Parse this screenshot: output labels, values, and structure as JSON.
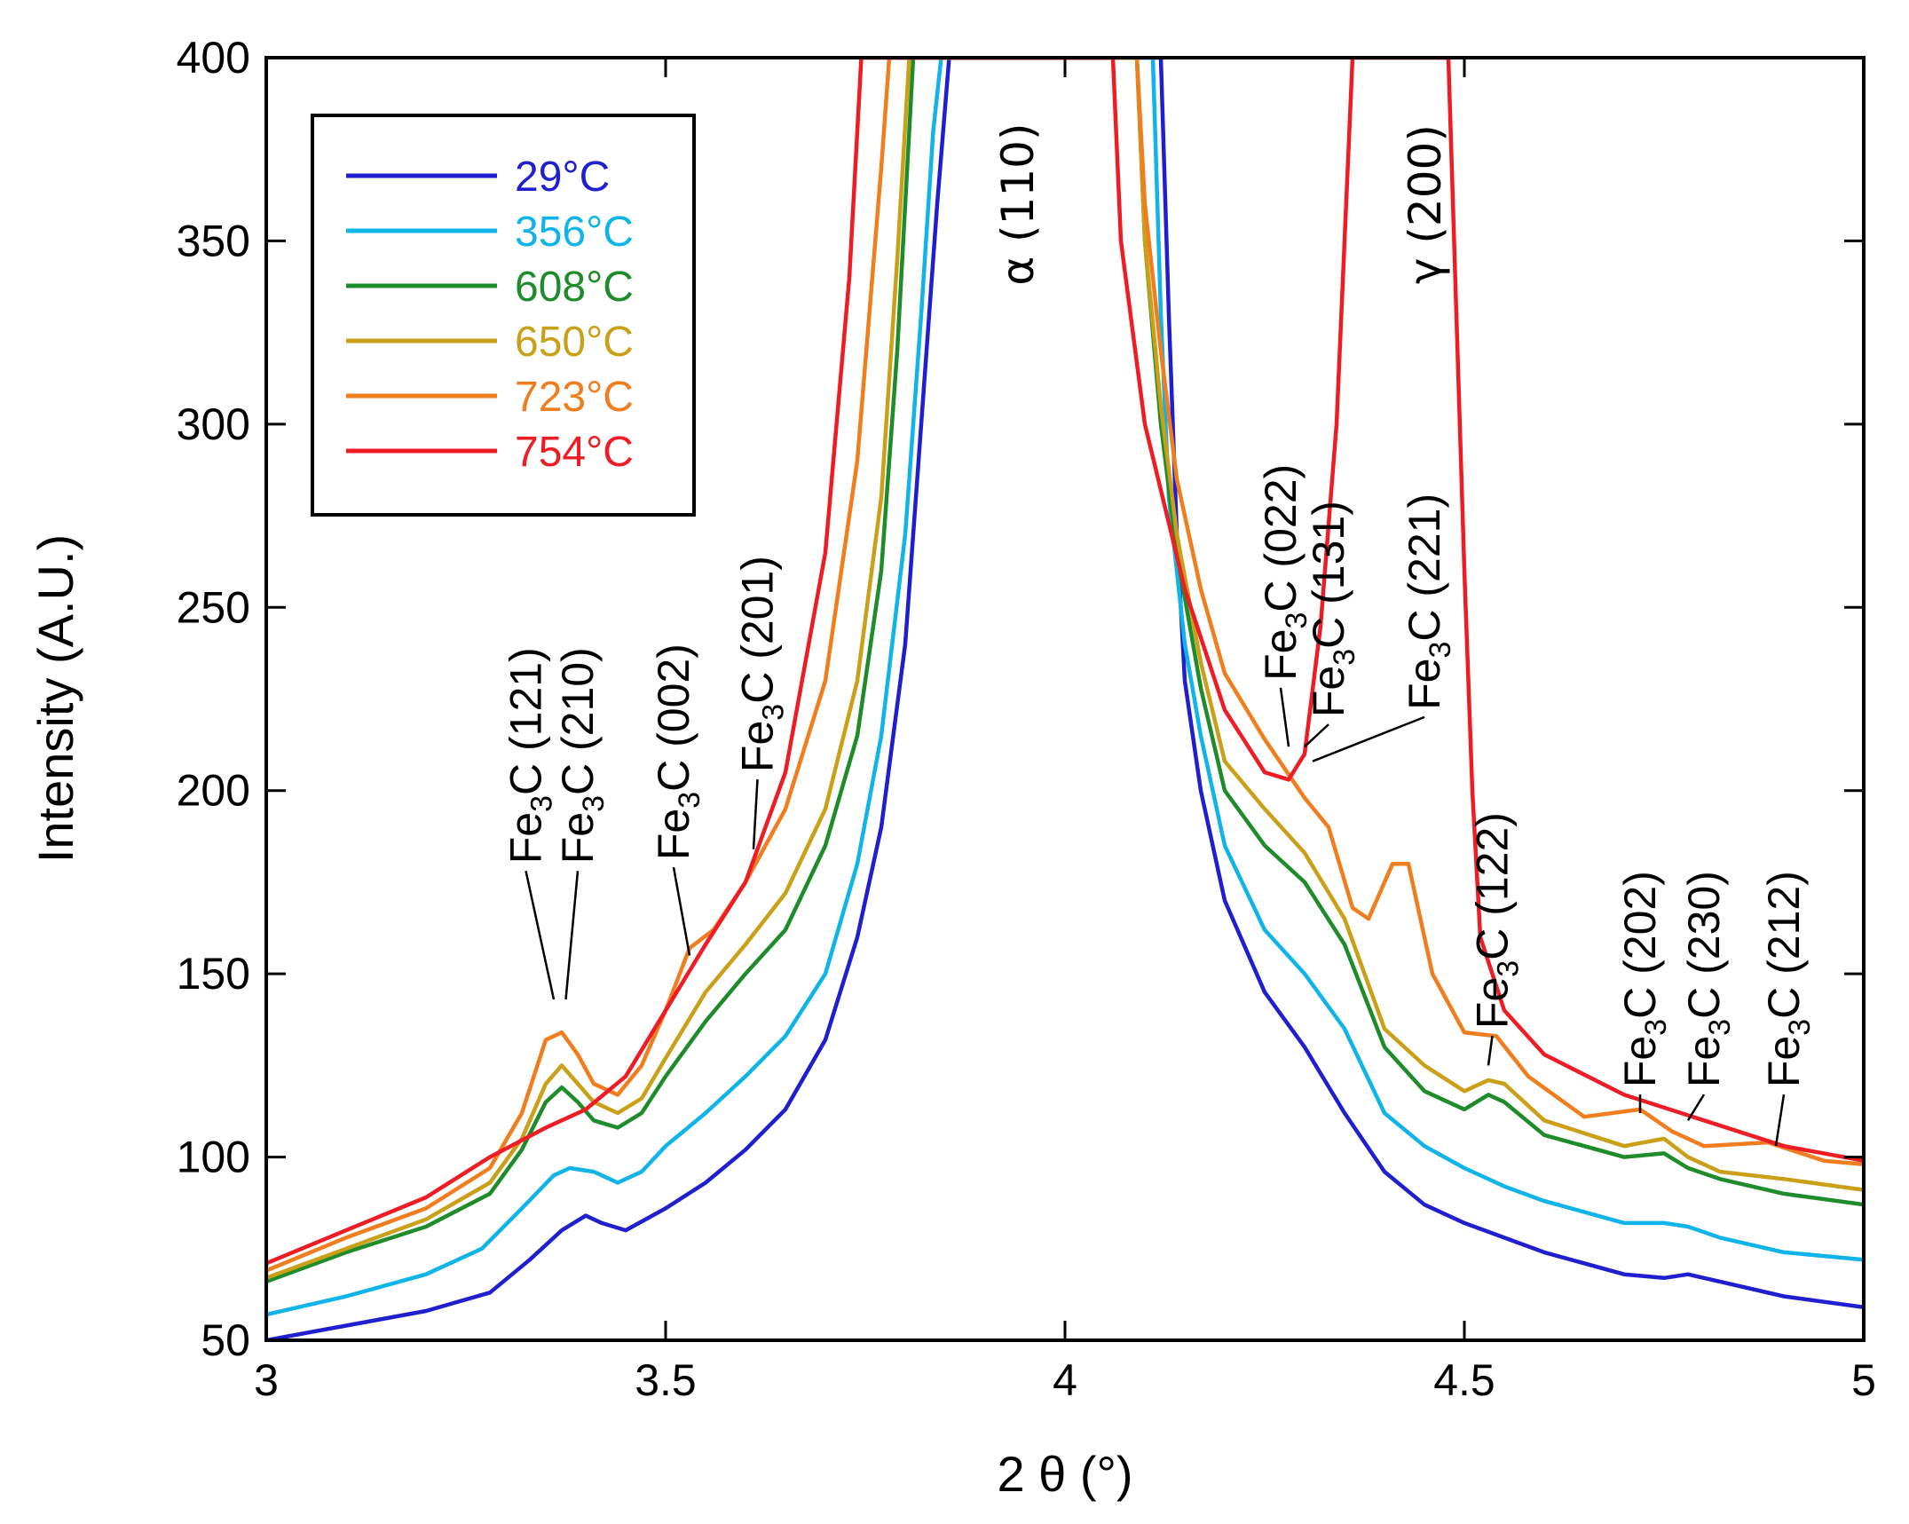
{
  "chart_data": {
    "type": "line",
    "title": "",
    "xlabel": "2 θ (°)",
    "ylabel": "Intensity (A.U.)",
    "xlim": [
      3,
      5
    ],
    "ylim": [
      50,
      400
    ],
    "xticks": [
      3,
      3.5,
      4,
      4.5,
      5
    ],
    "xtick_labels": [
      "3",
      "3.5",
      "4",
      "4.5",
      "5"
    ],
    "yticks": [
      50,
      100,
      150,
      200,
      250,
      300,
      350,
      400
    ],
    "ytick_labels": [
      "50",
      "100",
      "150",
      "200",
      "250",
      "300",
      "350",
      "400"
    ],
    "grid": false,
    "legend_position": "top-left",
    "series": [
      {
        "name": "29°C",
        "color": "#1f1fd0",
        "points": [
          [
            3.0,
            50
          ],
          [
            3.1,
            54
          ],
          [
            3.2,
            58
          ],
          [
            3.28,
            63
          ],
          [
            3.33,
            72
          ],
          [
            3.37,
            80
          ],
          [
            3.4,
            84
          ],
          [
            3.42,
            82
          ],
          [
            3.45,
            80
          ],
          [
            3.5,
            86
          ],
          [
            3.55,
            93
          ],
          [
            3.6,
            102
          ],
          [
            3.65,
            113
          ],
          [
            3.7,
            132
          ],
          [
            3.74,
            160
          ],
          [
            3.77,
            190
          ],
          [
            3.8,
            240
          ],
          [
            3.82,
            300
          ],
          [
            3.84,
            360
          ],
          [
            3.855,
            400
          ],
          [
            4.12,
            400
          ],
          [
            4.13,
            330
          ],
          [
            4.14,
            270
          ],
          [
            4.15,
            230
          ],
          [
            4.17,
            200
          ],
          [
            4.2,
            170
          ],
          [
            4.25,
            145
          ],
          [
            4.3,
            130
          ],
          [
            4.35,
            112
          ],
          [
            4.4,
            96
          ],
          [
            4.45,
            87
          ],
          [
            4.5,
            82
          ],
          [
            4.55,
            78
          ],
          [
            4.6,
            74
          ],
          [
            4.7,
            68
          ],
          [
            4.75,
            67
          ],
          [
            4.78,
            68
          ],
          [
            4.82,
            66
          ],
          [
            4.9,
            62
          ],
          [
            5.0,
            59
          ]
        ]
      },
      {
        "name": "356°C",
        "color": "#10b4e8",
        "points": [
          [
            3.0,
            57
          ],
          [
            3.1,
            62
          ],
          [
            3.2,
            68
          ],
          [
            3.27,
            75
          ],
          [
            3.32,
            86
          ],
          [
            3.36,
            95
          ],
          [
            3.38,
            97
          ],
          [
            3.41,
            96
          ],
          [
            3.44,
            93
          ],
          [
            3.47,
            96
          ],
          [
            3.5,
            103
          ],
          [
            3.55,
            112
          ],
          [
            3.6,
            122
          ],
          [
            3.65,
            133
          ],
          [
            3.7,
            150
          ],
          [
            3.74,
            180
          ],
          [
            3.77,
            215
          ],
          [
            3.8,
            270
          ],
          [
            3.82,
            330
          ],
          [
            3.835,
            380
          ],
          [
            3.845,
            400
          ],
          [
            4.11,
            400
          ],
          [
            4.12,
            330
          ],
          [
            4.13,
            280
          ],
          [
            4.15,
            240
          ],
          [
            4.17,
            215
          ],
          [
            4.2,
            185
          ],
          [
            4.25,
            162
          ],
          [
            4.3,
            150
          ],
          [
            4.35,
            135
          ],
          [
            4.4,
            112
          ],
          [
            4.45,
            103
          ],
          [
            4.5,
            97
          ],
          [
            4.55,
            92
          ],
          [
            4.6,
            88
          ],
          [
            4.7,
            82
          ],
          [
            4.75,
            82
          ],
          [
            4.78,
            81
          ],
          [
            4.82,
            78
          ],
          [
            4.9,
            74
          ],
          [
            5.0,
            72
          ]
        ]
      },
      {
        "name": "608°C",
        "color": "#1e8c2a",
        "points": [
          [
            3.0,
            66
          ],
          [
            3.1,
            74
          ],
          [
            3.2,
            81
          ],
          [
            3.28,
            90
          ],
          [
            3.32,
            102
          ],
          [
            3.35,
            115
          ],
          [
            3.37,
            119
          ],
          [
            3.39,
            115
          ],
          [
            3.41,
            110
          ],
          [
            3.44,
            108
          ],
          [
            3.47,
            112
          ],
          [
            3.5,
            122
          ],
          [
            3.55,
            137
          ],
          [
            3.6,
            150
          ],
          [
            3.65,
            162
          ],
          [
            3.7,
            185
          ],
          [
            3.74,
            215
          ],
          [
            3.77,
            260
          ],
          [
            3.79,
            320
          ],
          [
            3.81,
            400
          ],
          [
            4.09,
            400
          ],
          [
            4.1,
            350
          ],
          [
            4.12,
            300
          ],
          [
            4.14,
            265
          ],
          [
            4.17,
            228
          ],
          [
            4.2,
            200
          ],
          [
            4.25,
            185
          ],
          [
            4.3,
            175
          ],
          [
            4.35,
            158
          ],
          [
            4.4,
            130
          ],
          [
            4.45,
            118
          ],
          [
            4.5,
            113
          ],
          [
            4.53,
            117
          ],
          [
            4.55,
            115
          ],
          [
            4.6,
            106
          ],
          [
            4.7,
            100
          ],
          [
            4.75,
            101
          ],
          [
            4.78,
            97
          ],
          [
            4.82,
            94
          ],
          [
            4.9,
            90
          ],
          [
            5.0,
            87
          ]
        ]
      },
      {
        "name": "650°C",
        "color": "#c9a018",
        "points": [
          [
            3.0,
            67
          ],
          [
            3.1,
            75
          ],
          [
            3.2,
            83
          ],
          [
            3.28,
            93
          ],
          [
            3.32,
            105
          ],
          [
            3.35,
            120
          ],
          [
            3.37,
            125
          ],
          [
            3.39,
            120
          ],
          [
            3.41,
            115
          ],
          [
            3.44,
            112
          ],
          [
            3.47,
            116
          ],
          [
            3.5,
            127
          ],
          [
            3.55,
            145
          ],
          [
            3.6,
            158
          ],
          [
            3.65,
            172
          ],
          [
            3.7,
            195
          ],
          [
            3.74,
            230
          ],
          [
            3.77,
            280
          ],
          [
            3.79,
            345
          ],
          [
            3.805,
            400
          ],
          [
            4.09,
            400
          ],
          [
            4.1,
            350
          ],
          [
            4.12,
            305
          ],
          [
            4.14,
            270
          ],
          [
            4.17,
            235
          ],
          [
            4.2,
            208
          ],
          [
            4.25,
            195
          ],
          [
            4.3,
            183
          ],
          [
            4.35,
            165
          ],
          [
            4.4,
            135
          ],
          [
            4.45,
            125
          ],
          [
            4.5,
            118
          ],
          [
            4.53,
            121
          ],
          [
            4.55,
            120
          ],
          [
            4.6,
            110
          ],
          [
            4.7,
            103
          ],
          [
            4.75,
            105
          ],
          [
            4.78,
            100
          ],
          [
            4.82,
            96
          ],
          [
            4.9,
            94
          ],
          [
            5.0,
            91
          ]
        ]
      },
      {
        "name": "723°C",
        "color": "#f07d1e",
        "points": [
          [
            3.0,
            69
          ],
          [
            3.1,
            78
          ],
          [
            3.2,
            86
          ],
          [
            3.28,
            97
          ],
          [
            3.32,
            112
          ],
          [
            3.35,
            132
          ],
          [
            3.37,
            134
          ],
          [
            3.39,
            128
          ],
          [
            3.41,
            120
          ],
          [
            3.44,
            117
          ],
          [
            3.47,
            125
          ],
          [
            3.5,
            140
          ],
          [
            3.53,
            157
          ],
          [
            3.56,
            162
          ],
          [
            3.6,
            175
          ],
          [
            3.65,
            195
          ],
          [
            3.7,
            230
          ],
          [
            3.74,
            290
          ],
          [
            3.77,
            370
          ],
          [
            3.78,
            400
          ],
          [
            4.09,
            400
          ],
          [
            4.1,
            360
          ],
          [
            4.12,
            320
          ],
          [
            4.14,
            285
          ],
          [
            4.17,
            255
          ],
          [
            4.2,
            232
          ],
          [
            4.25,
            214
          ],
          [
            4.3,
            198
          ],
          [
            4.33,
            190
          ],
          [
            4.36,
            168
          ],
          [
            4.38,
            165
          ],
          [
            4.41,
            180
          ],
          [
            4.43,
            180
          ],
          [
            4.46,
            150
          ],
          [
            4.5,
            134
          ],
          [
            4.54,
            133
          ],
          [
            4.58,
            122
          ],
          [
            4.65,
            111
          ],
          [
            4.72,
            113
          ],
          [
            4.76,
            107
          ],
          [
            4.8,
            103
          ],
          [
            4.88,
            104
          ],
          [
            4.95,
            99
          ],
          [
            5.0,
            98
          ]
        ]
      },
      {
        "name": "754°C",
        "color": "#ee1c25",
        "points": [
          [
            3.0,
            71
          ],
          [
            3.1,
            80
          ],
          [
            3.2,
            89
          ],
          [
            3.28,
            100
          ],
          [
            3.35,
            108
          ],
          [
            3.4,
            113
          ],
          [
            3.45,
            122
          ],
          [
            3.5,
            140
          ],
          [
            3.55,
            158
          ],
          [
            3.6,
            175
          ],
          [
            3.65,
            205
          ],
          [
            3.7,
            265
          ],
          [
            3.73,
            340
          ],
          [
            3.745,
            400
          ],
          [
            4.06,
            400
          ],
          [
            4.07,
            350
          ],
          [
            4.1,
            300
          ],
          [
            4.15,
            255
          ],
          [
            4.2,
            222
          ],
          [
            4.25,
            205
          ],
          [
            4.28,
            203
          ],
          [
            4.3,
            210
          ],
          [
            4.32,
            245
          ],
          [
            4.34,
            300
          ],
          [
            4.35,
            350
          ],
          [
            4.36,
            400
          ],
          [
            4.48,
            400
          ],
          [
            4.49,
            330
          ],
          [
            4.5,
            260
          ],
          [
            4.51,
            200
          ],
          [
            4.52,
            160
          ],
          [
            4.55,
            140
          ],
          [
            4.6,
            128
          ],
          [
            4.7,
            117
          ],
          [
            4.8,
            110
          ],
          [
            4.9,
            103
          ],
          [
            5.0,
            99
          ]
        ]
      }
    ],
    "peak_labels": [
      {
        "text": "α (110)",
        "x": 3.94,
        "y": 360
      },
      {
        "text": "γ (200)",
        "x": 4.45,
        "y": 360
      }
    ],
    "annotations": [
      {
        "label": "(121)",
        "phase": "Fe3C",
        "target_x": 3.36,
        "target_y": 143
      },
      {
        "label": "(210)",
        "phase": "Fe3C",
        "target_x": 3.375,
        "target_y": 143
      },
      {
        "label": "(002)",
        "phase": "Fe3C",
        "target_x": 3.53,
        "target_y": 155
      },
      {
        "label": "(201)",
        "phase": "Fe3C",
        "target_x": 3.61,
        "target_y": 184
      },
      {
        "label": "(022)",
        "phase": "Fe3C",
        "target_x": 4.28,
        "target_y": 212
      },
      {
        "label": "(131)",
        "phase": "Fe3C",
        "target_x": 4.3,
        "target_y": 212
      },
      {
        "label": "(221)",
        "phase": "Fe3C",
        "target_x": 4.31,
        "target_y": 208
      },
      {
        "label": "(122)",
        "phase": "Fe3C",
        "target_x": 4.53,
        "target_y": 125
      },
      {
        "label": "(202)",
        "phase": "Fe3C",
        "target_x": 4.72,
        "target_y": 112
      },
      {
        "label": "(230)",
        "phase": "Fe3C",
        "target_x": 4.78,
        "target_y": 110
      },
      {
        "label": "(212)",
        "phase": "Fe3C",
        "target_x": 4.89,
        "target_y": 103
      }
    ]
  },
  "annotation_text": {
    "fe": "Fe",
    "sub": "3",
    "c": "C"
  }
}
